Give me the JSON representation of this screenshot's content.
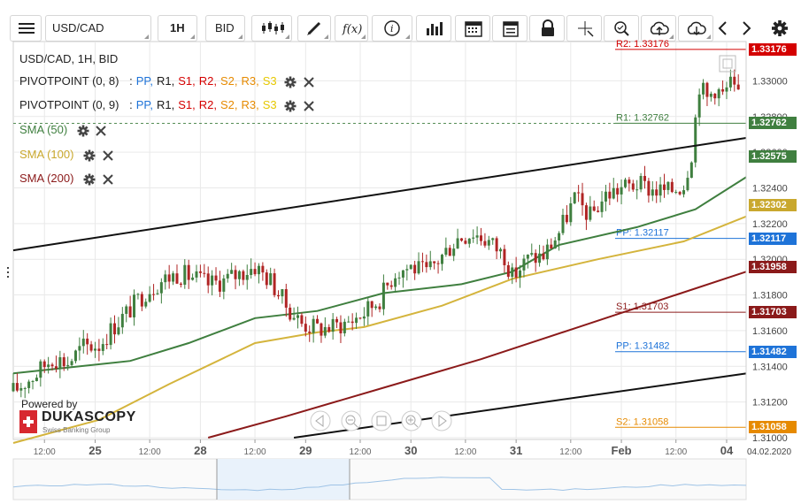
{
  "toolbar": {
    "symbol": "USD/CAD",
    "timeframe": "1H",
    "price_side": "BID",
    "icons": [
      "menu-icon",
      "candles-icon",
      "draw-icon",
      "function-icon",
      "info-icon",
      "bars-icon",
      "calendar-icon",
      "report-icon",
      "lock-icon",
      "crosshair-icon",
      "zoom-icon",
      "upload-icon",
      "download-icon",
      "chevron-left-icon",
      "chevron-right-icon",
      "gear-icon"
    ]
  },
  "legend": {
    "title": "USD/CAD, 1H, BID",
    "pivot1_name": "PIVOTPOINT (0, 8)",
    "pivot2_name": "PIVOTPOINT (0, 9)",
    "pivot_sep": ":",
    "pivot_items": [
      "PP,",
      "R1,",
      "S1,",
      "R2,",
      "S2,",
      "R3,",
      "S3"
    ],
    "pivot_colors": [
      "#1e73d8",
      "#1a1a1a",
      "#d40000",
      "#d40000",
      "#e68a00",
      "#e68a00",
      "#e6c800"
    ],
    "sma50": "SMA (50)",
    "sma100": "SMA (100)",
    "sma200": "SMA (200)"
  },
  "logo": {
    "powered": "Powered by",
    "name": "DUKASCOPY",
    "tagline": "Swiss Banking Group"
  },
  "chart_data": {
    "type": "candlestick",
    "symbol": "USD/CAD",
    "interval": "1H",
    "side": "BID",
    "ylim": [
      1.3099,
      1.3322
    ],
    "y_ticks": [
      1.31,
      1.312,
      1.314,
      1.316,
      1.318,
      1.32,
      1.322,
      1.324,
      1.326,
      1.328,
      1.33
    ],
    "x_ticks": [
      {
        "label": "12:00",
        "t": 8
      },
      {
        "label": "25",
        "t": 21,
        "bold": true
      },
      {
        "label": "12:00",
        "t": 35
      },
      {
        "label": "28",
        "t": 48,
        "bold": true
      },
      {
        "label": "12:00",
        "t": 62
      },
      {
        "label": "29",
        "t": 75,
        "bold": true
      },
      {
        "label": "12:00",
        "t": 89
      },
      {
        "label": "30",
        "t": 102,
        "bold": true
      },
      {
        "label": "12:00",
        "t": 116
      },
      {
        "label": "31",
        "t": 129,
        "bold": true
      },
      {
        "label": "12:00",
        "t": 143
      },
      {
        "label": "Feb",
        "t": 156,
        "bold": true
      },
      {
        "label": "12:00",
        "t": 170
      },
      {
        "label": "04",
        "t": 183,
        "bold": true
      }
    ],
    "date_label": "04.02.2020",
    "price_path": [
      [
        0,
        1.3126
      ],
      [
        6,
        1.3136
      ],
      [
        10,
        1.3145
      ],
      [
        14,
        1.3142
      ],
      [
        18,
        1.3151
      ],
      [
        22,
        1.3152
      ],
      [
        26,
        1.3163
      ],
      [
        30,
        1.3172
      ],
      [
        34,
        1.3182
      ],
      [
        38,
        1.3188
      ],
      [
        42,
        1.3192
      ],
      [
        46,
        1.319
      ],
      [
        50,
        1.3186
      ],
      [
        54,
        1.3188
      ],
      [
        58,
        1.3192
      ],
      [
        62,
        1.3196
      ],
      [
        66,
        1.3188
      ],
      [
        70,
        1.3174
      ],
      [
        74,
        1.3164
      ],
      [
        78,
        1.3161
      ],
      [
        82,
        1.3162
      ],
      [
        86,
        1.3165
      ],
      [
        90,
        1.317
      ],
      [
        94,
        1.3178
      ],
      [
        98,
        1.3193
      ],
      [
        102,
        1.3196
      ],
      [
        106,
        1.3192
      ],
      [
        110,
        1.3202
      ],
      [
        114,
        1.3212
      ],
      [
        118,
        1.3215
      ],
      [
        122,
        1.321
      ],
      [
        126,
        1.3202
      ],
      [
        128,
        1.319
      ],
      [
        132,
        1.32
      ],
      [
        136,
        1.3202
      ],
      [
        140,
        1.3215
      ],
      [
        144,
        1.3234
      ],
      [
        148,
        1.3224
      ],
      [
        152,
        1.3236
      ],
      [
        156,
        1.324
      ],
      [
        160,
        1.3242
      ],
      [
        164,
        1.3239
      ],
      [
        168,
        1.3238
      ],
      [
        172,
        1.3242
      ],
      [
        174,
        1.326
      ],
      [
        176,
        1.3298
      ],
      [
        178,
        1.329
      ],
      [
        180,
        1.3296
      ],
      [
        182,
        1.3292
      ],
      [
        184,
        1.3298
      ],
      [
        186,
        1.329
      ]
    ],
    "series": [
      {
        "name": "SMA (50)",
        "color": "#3f7f3f",
        "points": [
          [
            0,
            1.3136
          ],
          [
            30,
            1.3143
          ],
          [
            45,
            1.3153
          ],
          [
            62,
            1.3167
          ],
          [
            78,
            1.3171
          ],
          [
            95,
            1.3181
          ],
          [
            115,
            1.3186
          ],
          [
            128,
            1.3193
          ],
          [
            140,
            1.3208
          ],
          [
            160,
            1.3218
          ],
          [
            175,
            1.3228
          ],
          [
            188,
            1.3246
          ]
        ]
      },
      {
        "name": "SMA (100)",
        "color": "#d4b43c",
        "points": [
          [
            0,
            1.3097
          ],
          [
            22,
            1.311
          ],
          [
            40,
            1.313
          ],
          [
            62,
            1.3153
          ],
          [
            78,
            1.3159
          ],
          [
            90,
            1.3162
          ],
          [
            110,
            1.3174
          ],
          [
            128,
            1.3189
          ],
          [
            150,
            1.32
          ],
          [
            172,
            1.321
          ],
          [
            188,
            1.3224
          ]
        ]
      },
      {
        "name": "SMA (200)",
        "color": "#8b1a1a",
        "points": [
          [
            50,
            1.31
          ],
          [
            70,
            1.3112
          ],
          [
            95,
            1.3128
          ],
          [
            120,
            1.3144
          ],
          [
            145,
            1.3162
          ],
          [
            170,
            1.318
          ],
          [
            188,
            1.3193
          ]
        ]
      }
    ],
    "trendlines": [
      {
        "name": "upper-trendline",
        "points": [
          [
            0,
            1.3205
          ],
          [
            188,
            1.3268
          ]
        ]
      },
      {
        "name": "lower-trendline",
        "points": [
          [
            72,
            1.31
          ],
          [
            188,
            1.3136
          ]
        ]
      }
    ],
    "levels": [
      {
        "label": "R2: 1.33176",
        "value": 1.33176,
        "color": "#d40000"
      },
      {
        "label": "R1: 1.32762",
        "value": 1.32762,
        "color": "#3f7f3f"
      },
      {
        "label": "PP: 1.32117",
        "value": 1.32117,
        "color": "#1e73d8"
      },
      {
        "label": "S1: 1.31703",
        "value": 1.31703,
        "color": "#8b1a1a"
      },
      {
        "label": "PP: 1.31482",
        "value": 1.31482,
        "color": "#1e73d8"
      },
      {
        "label": "S2: 1.31058",
        "value": 1.31058,
        "color": "#e68a00"
      }
    ],
    "price_tags": [
      {
        "text": "1.33176",
        "value": 1.33176,
        "color": "#d40000"
      },
      {
        "text": "1.32762",
        "value": 1.32762,
        "color": "#3f7f3f"
      },
      {
        "text": "1.32575",
        "value": 1.32575,
        "color": "#3f7f3f"
      },
      {
        "text": "1.32302",
        "value": 1.32302,
        "color": "#c9a82e"
      },
      {
        "text": "1.32117",
        "value": 1.32117,
        "color": "#1e73d8"
      },
      {
        "text": "1.31958",
        "value": 1.31958,
        "color": "#8b1a1a"
      },
      {
        "text": "1.31703",
        "value": 1.31703,
        "color": "#8b1a1a"
      },
      {
        "text": "1.31482",
        "value": 1.31482,
        "color": "#1e73d8"
      },
      {
        "text": "1.31058",
        "value": 1.31058,
        "color": "#e68a00"
      }
    ],
    "colors": {
      "up": "#3f7f3f",
      "down": "#b02424",
      "grid": "#e9e9e9"
    }
  }
}
